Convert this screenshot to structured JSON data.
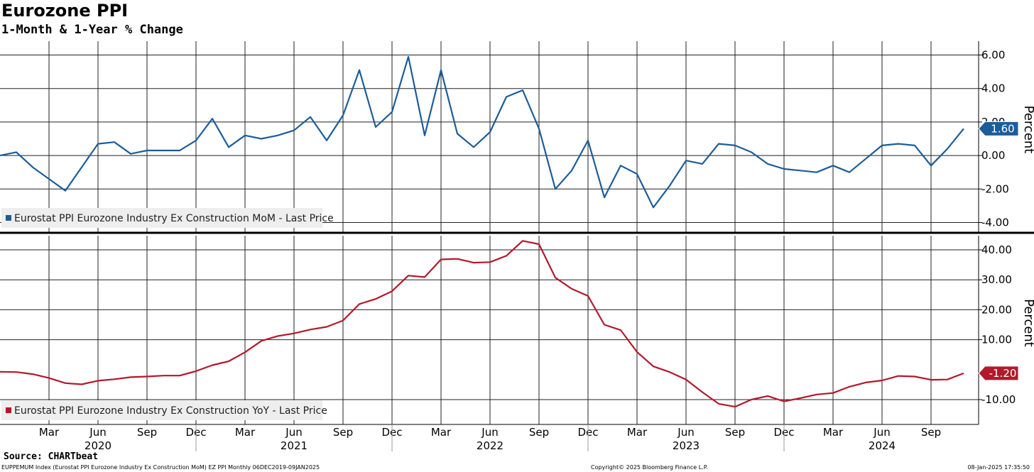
{
  "header": {
    "title": "Eurozone PPI",
    "subtitle": "1-Month & 1-Year % Change"
  },
  "footer": {
    "source": "Source: CHARTbeat",
    "left": "EUPPEMUM Index (Eurostat PPI Eurozone Industry Ex Construction MoM) EZ PPI  Monthly 06DEC2019-09JAN2025",
    "center": "Copyright© 2025 Bloomberg Finance L.P.",
    "right": "08-Jan-2025 17:35:50"
  },
  "chart_data": [
    {
      "type": "line",
      "ylabel": "Percent",
      "ylim": [
        -4.5,
        6.6
      ],
      "yticks": [
        6,
        4,
        2,
        0,
        -2,
        -4
      ],
      "ytick_labels": [
        "6.00",
        "4.00",
        "2.00",
        "0.00",
        "-2.00",
        "-4.00"
      ],
      "grid": true,
      "legend_position": "bottom-left",
      "series": [
        {
          "name": "Eurostat PPI Eurozone Industry Ex Construction MoM - Last Price",
          "color": "#1c5d99",
          "last_value_label": "1.60",
          "start": "2019-12",
          "values": [
            0.0,
            0.2,
            -0.7,
            -1.4,
            -2.1,
            -0.7,
            0.7,
            0.8,
            0.1,
            0.3,
            0.3,
            0.3,
            0.9,
            2.2,
            0.5,
            1.2,
            1.0,
            1.2,
            1.5,
            2.3,
            0.9,
            2.4,
            5.1,
            1.7,
            2.6,
            5.9,
            1.2,
            5.1,
            1.3,
            0.5,
            1.4,
            3.5,
            3.9,
            1.6,
            -2.0,
            -0.9,
            0.9,
            -2.5,
            -0.6,
            -1.1,
            -3.1,
            -1.8,
            -0.3,
            -0.5,
            0.7,
            0.6,
            0.2,
            -0.5,
            -0.8,
            -0.9,
            -1.0,
            -0.6,
            -1.0,
            -0.2,
            0.6,
            0.7,
            0.6,
            -0.6,
            0.4,
            1.6
          ]
        }
      ]
    },
    {
      "type": "line",
      "ylabel": "Percent",
      "ylim": [
        -18,
        44
      ],
      "yticks": [
        40,
        30,
        20,
        10,
        -10
      ],
      "ytick_labels": [
        "40.00",
        "30.00",
        "20.00",
        "10.00",
        "-10.00"
      ],
      "grid": true,
      "legend_position": "bottom-left",
      "series": [
        {
          "name": "Eurostat PPI Eurozone Industry Ex Construction YoY - Last Price",
          "color": "#b3182b",
          "last_value_label": "-1.20",
          "start": "2019-12",
          "values": [
            -0.7,
            -0.8,
            -1.5,
            -2.8,
            -4.5,
            -4.9,
            -3.7,
            -3.2,
            -2.5,
            -2.3,
            -2.0,
            -2.0,
            -0.5,
            1.5,
            2.8,
            5.8,
            9.6,
            11.2,
            12.1,
            13.4,
            14.3,
            16.4,
            21.9,
            23.6,
            26.2,
            31.4,
            30.9,
            36.8,
            37.0,
            35.7,
            35.9,
            38.0,
            43.0,
            41.9,
            30.7,
            27.0,
            24.6,
            15.0,
            13.2,
            5.9,
            1.1,
            -0.8,
            -3.3,
            -7.5,
            -11.4,
            -12.4,
            -10.0,
            -8.8,
            -10.6,
            -9.5,
            -8.3,
            -7.8,
            -5.7,
            -4.3,
            -3.6,
            -2.1,
            -2.3,
            -3.4,
            -3.3,
            -1.2
          ]
        }
      ]
    }
  ],
  "x_axis": {
    "month_labels": [
      "Mar",
      "Jun",
      "Sep",
      "Dec",
      "Mar",
      "Jun",
      "Sep",
      "Dec",
      "Mar",
      "Jun",
      "Sep",
      "Dec",
      "Mar",
      "Jun",
      "Sep",
      "Dec",
      "Mar",
      "Jun",
      "Sep"
    ],
    "year_labels": [
      "2020",
      "2021",
      "2022",
      "2023",
      "2024"
    ]
  }
}
